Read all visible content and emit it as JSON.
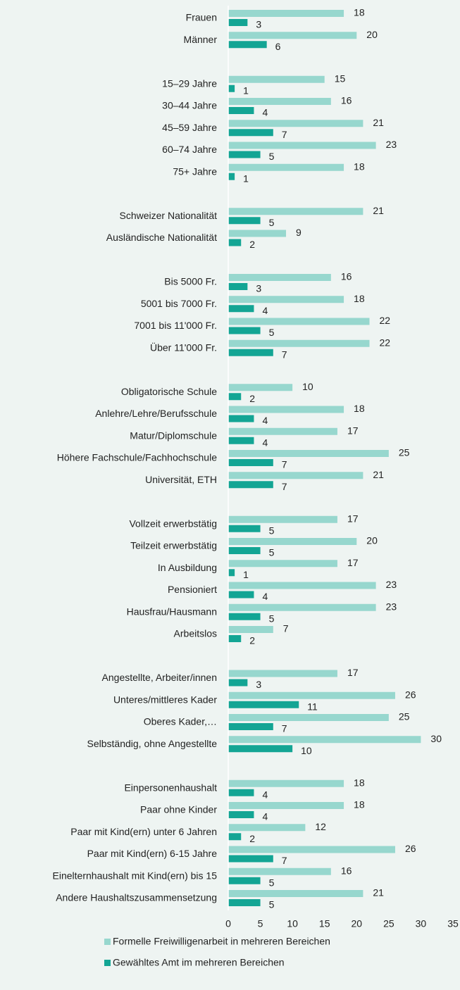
{
  "chart_data": {
    "type": "hbar",
    "categories": [
      "Frauen",
      "Männer",
      null,
      "15–29 Jahre",
      "30–44 Jahre",
      "45–59 Jahre",
      "60–74 Jahre",
      "75+ Jahre",
      null,
      "Schweizer Nationalität",
      "Ausländische Nationalität",
      null,
      "Bis 5000 Fr.",
      "5001 bis 7000 Fr.",
      "7001 bis 11'000 Fr.",
      "Über 11'000 Fr.",
      null,
      "Obligatorische Schule",
      "Anlehre/Lehre/Berufsschule",
      "Matur/Diplomschule",
      "Höhere Fachschule/Fachhochschule",
      "Universität, ETH",
      null,
      "Vollzeit erwerbstätig",
      "Teilzeit erwerbstätig",
      "In Ausbildung",
      "Pensioniert",
      "Hausfrau/Hausmann",
      "Arbeitslos",
      null,
      "Angestellte, Arbeiter/innen",
      "Unteres/mittleres Kader",
      "Oberes Kader,…",
      "Selbständig, ohne Angestellte",
      null,
      "Einpersonenhaushalt",
      "Paar ohne Kinder",
      "Paar mit Kind(ern) unter 6 Jahren",
      "Paar mit Kind(ern) 6-15 Jahre",
      "Einelternhaushalt mit Kind(ern) bis 15",
      "Andere Haushaltszusammensetzung"
    ],
    "series": [
      {
        "name": "Formelle Freiwilligenarbeit in mehreren Bereichen",
        "color": "#97d7ce",
        "values": [
          18,
          20,
          null,
          15,
          16,
          21,
          23,
          18,
          null,
          21,
          9,
          null,
          16,
          18,
          22,
          22,
          null,
          10,
          18,
          17,
          25,
          21,
          null,
          17,
          20,
          17,
          23,
          23,
          7,
          null,
          17,
          26,
          25,
          30,
          null,
          18,
          18,
          12,
          26,
          16,
          21
        ]
      },
      {
        "name": "Gewähltes Amt im mehreren Bereichen",
        "color": "#13a594",
        "values": [
          3,
          6,
          null,
          1,
          4,
          7,
          5,
          1,
          null,
          5,
          2,
          null,
          3,
          4,
          5,
          7,
          null,
          2,
          4,
          4,
          7,
          7,
          null,
          5,
          5,
          1,
          4,
          5,
          2,
          null,
          3,
          11,
          7,
          10,
          null,
          4,
          4,
          2,
          7,
          5,
          5
        ]
      }
    ],
    "xlim": [
      0,
      35
    ],
    "xticks": [
      0,
      5,
      10,
      15,
      20,
      25,
      30,
      35
    ]
  }
}
